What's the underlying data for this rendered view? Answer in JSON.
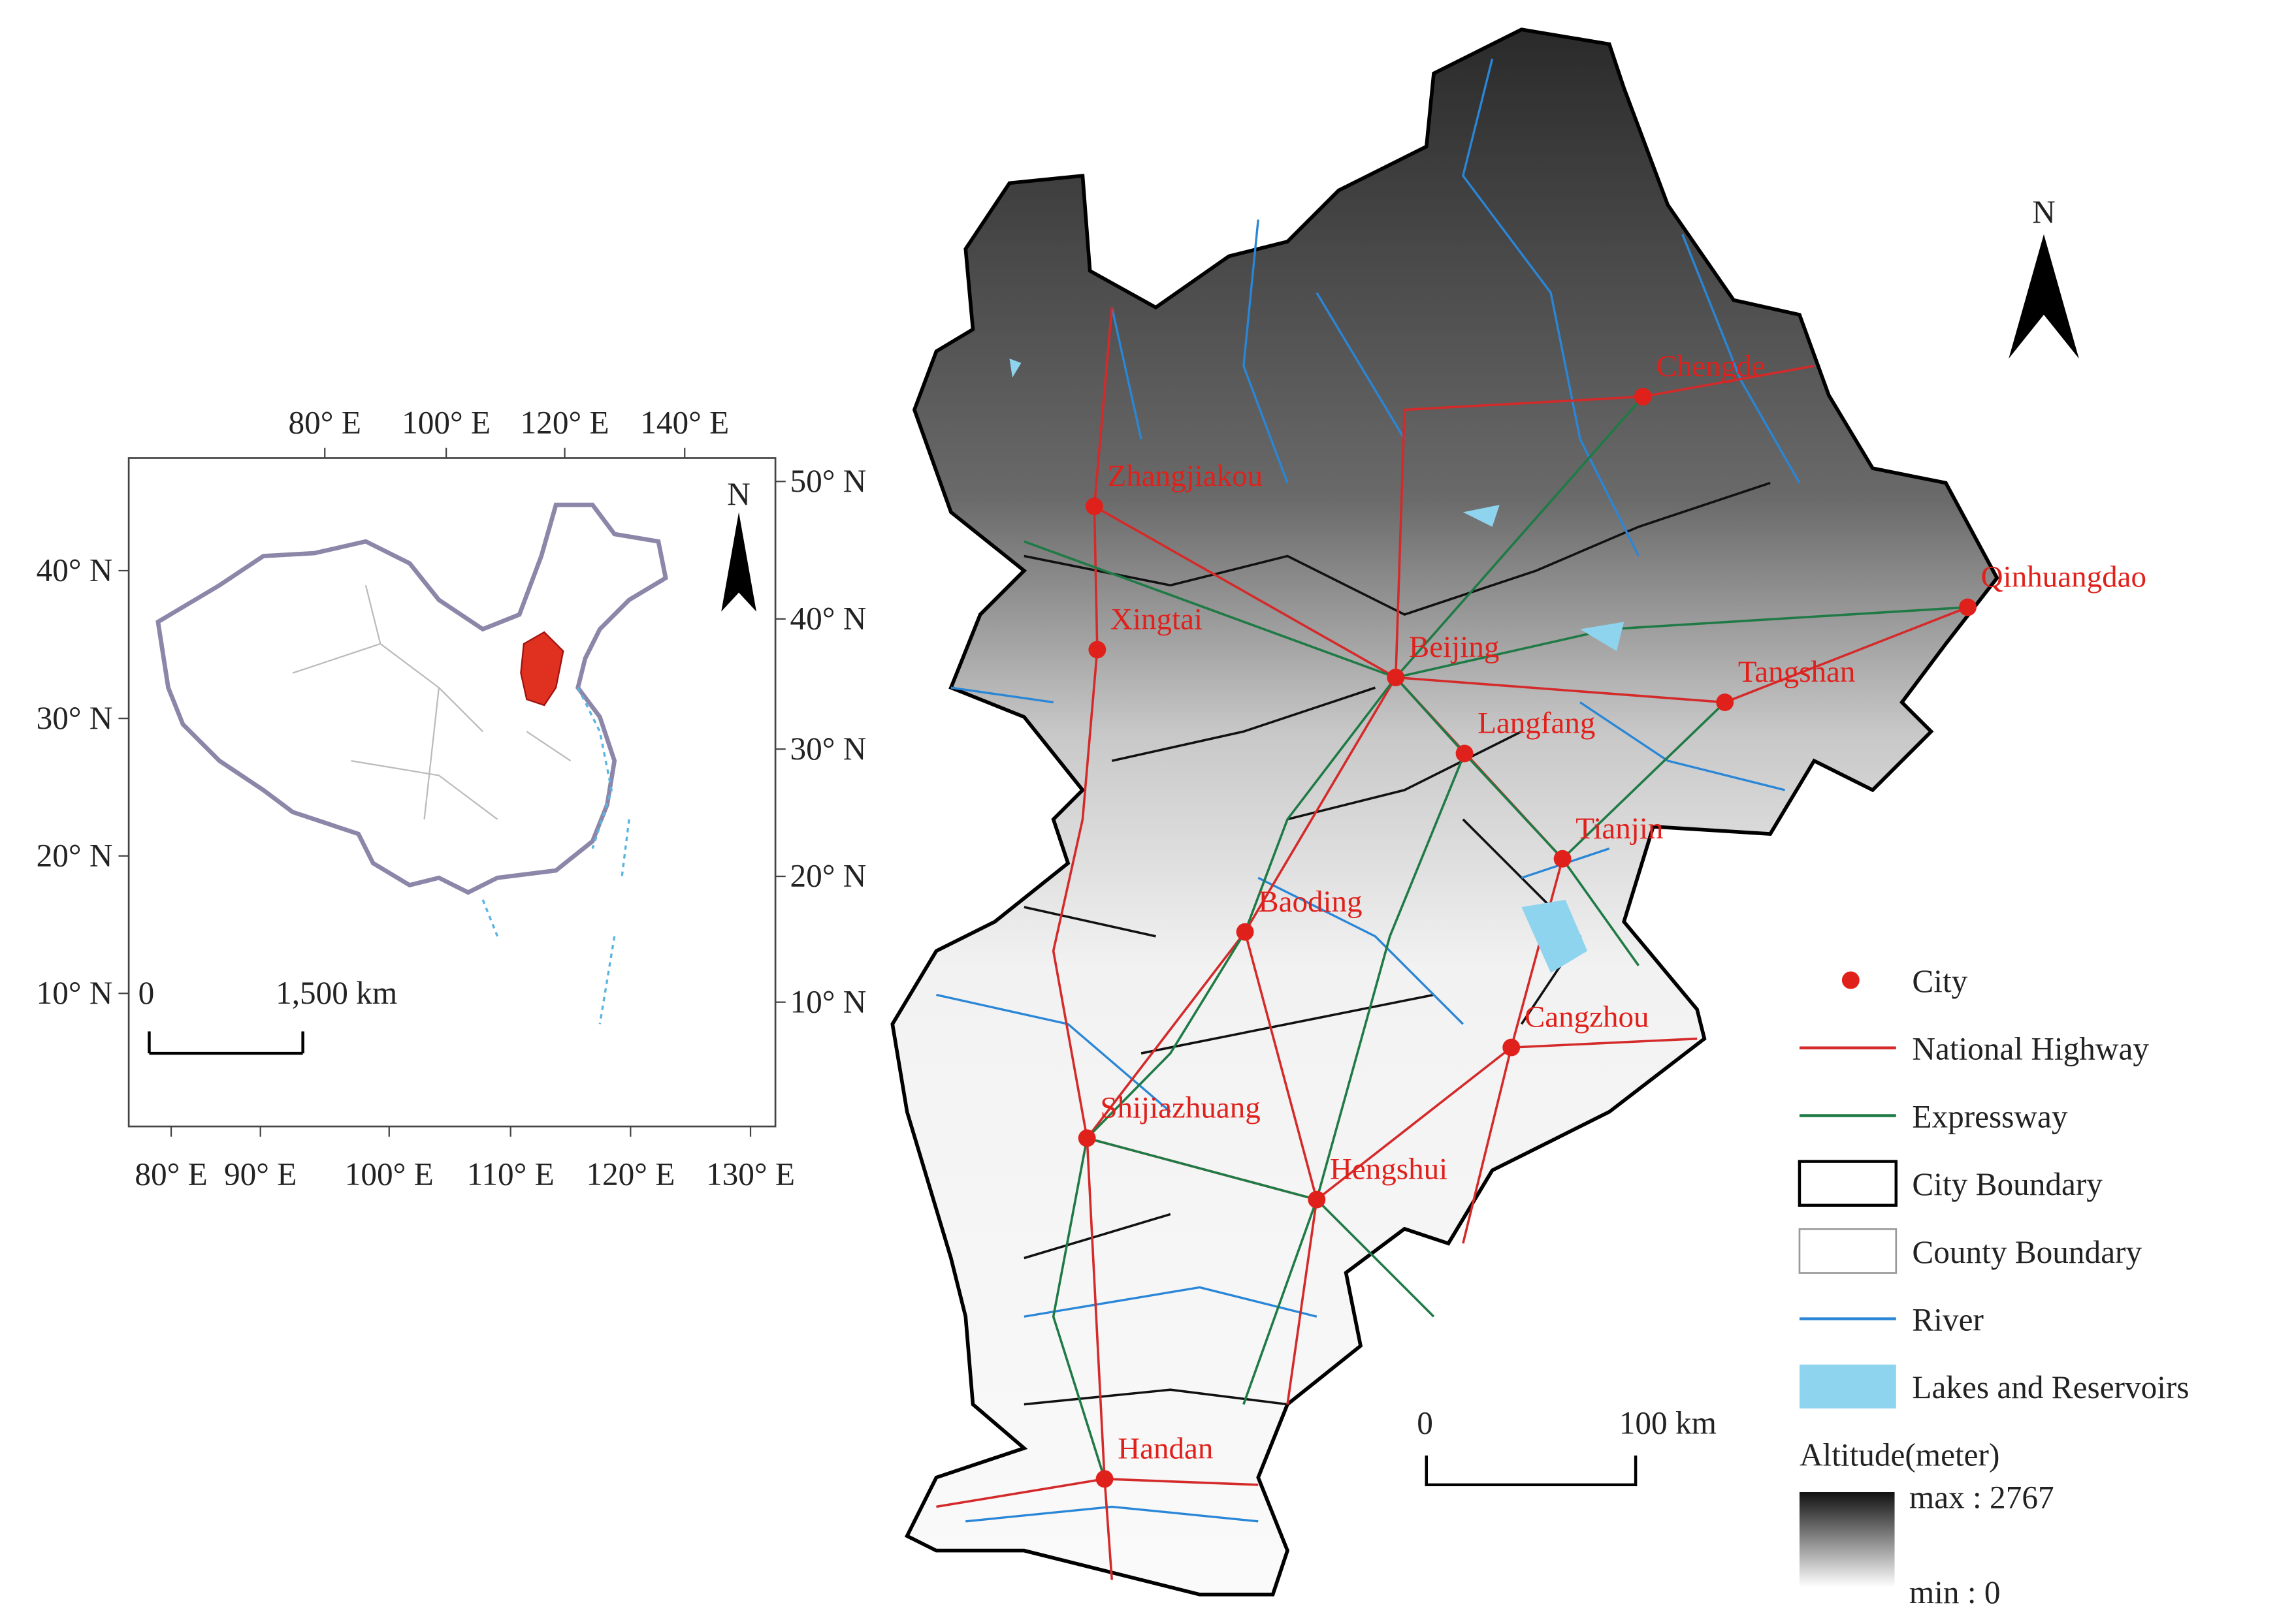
{
  "inset": {
    "top_ticks": [
      "80° E",
      "100° E",
      "120° E",
      "140° E"
    ],
    "bottom_ticks": [
      "80° E",
      "90° E",
      "100° E",
      "110° E",
      "120° E",
      "130° E"
    ],
    "left_ticks": [
      "40° N",
      "30° N",
      "20° N",
      "10° N"
    ],
    "right_ticks": [
      "50° N",
      "40° N",
      "30° N",
      "20° N",
      "10° N"
    ],
    "north": "N",
    "scale": {
      "start": "0",
      "end": "1,500 km"
    }
  },
  "main": {
    "north": "N",
    "scale": {
      "start": "0",
      "end": "100 km"
    },
    "cities": [
      "Chengde",
      "Zhangjiakou",
      "Xingtai",
      "Beijing",
      "Langfang",
      "Tangshan",
      "Qinhuangdao",
      "Tianjin",
      "Baoding",
      "Cangzhou",
      "Shijiazhuang",
      "Hengshui",
      "Handan"
    ]
  },
  "legend": {
    "items": [
      "City",
      "National Highway",
      "Expressway",
      "City Boundary",
      "County Boundary",
      "River",
      "Lakes and Reservoirs"
    ],
    "altitude": {
      "title": "Altitude(meter)",
      "max": "max : 2767",
      "min": "min : 0"
    }
  }
}
